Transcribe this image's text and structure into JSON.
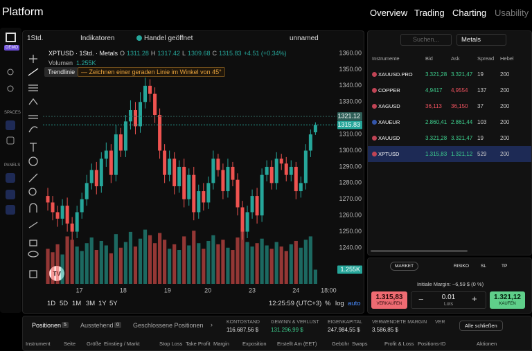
{
  "nav": {
    "brand": "Platform",
    "items": [
      "Overview",
      "Trading",
      "Charting",
      "Usability"
    ]
  },
  "sidebar": {
    "badge": "DEMO",
    "spaces": "SPACES",
    "panels": "PANELS"
  },
  "toolbar": {
    "interval": "1Std.",
    "indicators": "Indikatoren",
    "market_status": "Handel geöffnet",
    "layout": "unnamed"
  },
  "chart": {
    "type": "candlestick",
    "symbol": "XPTUSD · 1Std. · Metals",
    "o": "O",
    "h": "H",
    "l": "L",
    "c": "C",
    "change": "+4.51 (+0.34%)",
    "volume_name": "Volumen",
    "volume_last_label": "1.255K",
    "tool_name": "Trendlinie",
    "tool_hint": "— Zeichnen einer geraden Linie im Winkel von 45°",
    "colors": {
      "up": "#26a69a",
      "down": "#ef5350"
    },
    "grid": false,
    "candles": {
      "open": [
        1272,
        1268,
        1262,
        1258,
        1266,
        1255,
        1250,
        1262,
        1270,
        1280,
        1288,
        1278,
        1295,
        1300,
        1285,
        1310,
        1300,
        1318,
        1325,
        1315,
        1330,
        1340,
        1335,
        1322,
        1300,
        1285,
        1295,
        1278,
        1290,
        1270,
        1285,
        1262,
        1275,
        1268,
        1280,
        1295,
        1288,
        1275,
        1290,
        1282,
        1265,
        1250,
        1262,
        1272,
        1260,
        1285,
        1290,
        1280,
        1295,
        1292,
        1285,
        1290,
        1275,
        1280,
        1300,
        1311.28
      ],
      "high": [
        1277,
        1272,
        1266,
        1270,
        1271,
        1259,
        1266,
        1274,
        1285,
        1292,
        1293,
        1299,
        1305,
        1304,
        1316,
        1314,
        1322,
        1331,
        1330,
        1336,
        1345,
        1344,
        1339,
        1326,
        1304,
        1300,
        1299,
        1294,
        1295,
        1289,
        1290,
        1279,
        1280,
        1284,
        1300,
        1298,
        1292,
        1295,
        1293,
        1286,
        1269,
        1266,
        1276,
        1277,
        1289,
        1294,
        1294,
        1299,
        1298,
        1296,
        1294,
        1293,
        1284,
        1304,
        1313,
        1317.42
      ],
      "low": [
        1263,
        1257,
        1253,
        1254,
        1250,
        1245,
        1246,
        1258,
        1266,
        1276,
        1273,
        1274,
        1290,
        1280,
        1281,
        1296,
        1296,
        1313,
        1310,
        1311,
        1326,
        1330,
        1317,
        1295,
        1280,
        1281,
        1273,
        1274,
        1265,
        1266,
        1257,
        1258,
        1263,
        1264,
        1276,
        1284,
        1270,
        1271,
        1278,
        1260,
        1245,
        1246,
        1258,
        1255,
        1256,
        1281,
        1276,
        1276,
        1288,
        1281,
        1281,
        1270,
        1271,
        1276,
        1296,
        1309.68
      ],
      "close": [
        1268,
        1262,
        1258,
        1266,
        1255,
        1250,
        1262,
        1270,
        1280,
        1288,
        1278,
        1295,
        1300,
        1285,
        1310,
        1300,
        1318,
        1325,
        1315,
        1330,
        1340,
        1335,
        1322,
        1300,
        1285,
        1295,
        1278,
        1290,
        1270,
        1285,
        1262,
        1275,
        1268,
        1280,
        1295,
        1288,
        1275,
        1290,
        1282,
        1265,
        1250,
        1262,
        1272,
        1260,
        1285,
        1290,
        1280,
        1295,
        1292,
        1285,
        1290,
        1275,
        1280,
        1300,
        1310,
        1315.83
      ]
    },
    "volume": [
      3100,
      2800,
      3500,
      2600,
      4200,
      3900,
      3300,
      2900,
      3600,
      4100,
      3000,
      3800,
      3400,
      2700,
      4400,
      3200,
      3700,
      4600,
      3300,
      4000,
      4800,
      4300,
      3600,
      4500,
      3900,
      3100,
      3500,
      3000,
      4200,
      3400,
      4700,
      3600,
      3100,
      3800,
      4300,
      3500,
      3900,
      3200,
      3000,
      4100,
      4900,
      3700,
      3300,
      3600,
      4000,
      3400,
      3100,
      3700,
      3300,
      2900,
      3500,
      3800,
      3200,
      3900,
      4200,
      1255
    ],
    "ylim": [
      1217.8,
      1363
    ],
    "yticks": [
      {
        "value": 1360,
        "label": "1360.00"
      },
      {
        "value": 1350,
        "label": "1350.00"
      },
      {
        "value": 1340,
        "label": "1340.00"
      },
      {
        "value": 1330,
        "label": "1330.00"
      },
      {
        "value": 1320,
        "label": "1320.00"
      },
      {
        "value": 1310,
        "label": "1310.00"
      },
      {
        "value": 1300,
        "label": "1300.00"
      },
      {
        "value": 1290,
        "label": "1290.00"
      },
      {
        "value": 1280,
        "label": "1280.00"
      },
      {
        "value": 1270,
        "label": "1270.00"
      },
      {
        "value": 1260,
        "label": "1260.00"
      },
      {
        "value": 1250,
        "label": "1250.00"
      },
      {
        "value": 1240,
        "label": "1240.00"
      }
    ],
    "xlim": [
      -1,
      59.5
    ],
    "xticks": [
      {
        "value": 6.5,
        "label": "17"
      },
      {
        "value": 15.5,
        "label": "18"
      },
      {
        "value": 24.6,
        "label": "19"
      },
      {
        "value": 32.9,
        "label": "20"
      },
      {
        "value": 42,
        "label": "23"
      },
      {
        "value": 51,
        "label": "24"
      },
      {
        "value": 57.7,
        "label": "18:00"
      }
    ],
    "ask_price": 1321.12,
    "bid_price": 1315.83
  },
  "chart_footer": {
    "ranges": [
      "1D",
      "5D",
      "1M",
      "3M",
      "1Y",
      "5Y"
    ],
    "clock": "12:25:59 (UTC+3)",
    "percent": "%",
    "log": "log",
    "auto": "auto"
  },
  "watchlist": {
    "search": "Suchen...",
    "group": "Metals",
    "columns": [
      "Instrumente",
      "Bid",
      "Ask",
      "Spread",
      "Hebel"
    ],
    "selected": 5,
    "rows": [
      {
        "symbol": "XAUUSD.PRO",
        "bid": "3.321,28",
        "ask": "3.321,47",
        "spread": 19,
        "leverage": 200,
        "bid_color": "#3ecf8e",
        "ask_color": "#3ecf8e"
      },
      {
        "symbol": "COPPER",
        "bid": "4,9417",
        "ask": "4,9554",
        "spread": 137,
        "leverage": 200,
        "bid_color": "#3ecf8e",
        "ask_color": "#f0525f"
      },
      {
        "symbol": "XAGUSD",
        "bid": "36,113",
        "ask": "36,150",
        "spread": 37,
        "leverage": 200,
        "bid_color": "#f0525f",
        "ask_color": "#f0525f"
      },
      {
        "symbol": "XAUEUR",
        "bid": "2.860,41",
        "ask": "2.861,44",
        "spread": 103,
        "leverage": 200,
        "bid_color": "#3ecf8e",
        "ask_color": "#3ecf8e"
      },
      {
        "symbol": "XAUUSD",
        "bid": "3.321,28",
        "ask": "3.321,47",
        "spread": 19,
        "leverage": 200,
        "bid_color": "#3ecf8e",
        "ask_color": "#3ecf8e"
      },
      {
        "symbol": "XPTUSD",
        "bid": "1.315,83",
        "ask": "1.321,12",
        "spread": 529,
        "leverage": 200,
        "bid_color": "#3ecf8e",
        "ask_color": "#3ecf8e"
      }
    ]
  },
  "order": {
    "type": "MARKET",
    "risk": "RISIKO",
    "sl": "SL",
    "tp": "TP",
    "margin": "Initiale Margin: ~6,59 $ (0 %)",
    "sell_price": "1.315,83",
    "sell": "VERKAUFEN",
    "lots": "0.01",
    "lots_label": "Lots",
    "buy_price": "1.321,12",
    "buy": "KAUFEN"
  },
  "positions": {
    "tabs": [
      {
        "label": "Positionen",
        "count": 5
      },
      {
        "label": "Ausstehend",
        "count": 0
      },
      {
        "label": "Geschlossene Positionen"
      }
    ],
    "stats": [
      {
        "label": "KONTOSTAND",
        "value": "116.687,56 $",
        "color": "#e6e6e6"
      },
      {
        "label": "GEWINN & VERLUST",
        "value": "131.296,99 $",
        "color": "#3ecf8e"
      },
      {
        "label": "EIGENKAPITAL",
        "value": "247.984,55 $",
        "color": "#e6e6e6"
      },
      {
        "label": "VERWENDETE MARGIN",
        "value": "3.586,85 $",
        "color": "#e6e6e6"
      },
      {
        "label": "VER"
      }
    ],
    "close_all": "Alle schließen",
    "columns": [
      "Instrument",
      "Seite",
      "Größe",
      "Einstieg / Markt",
      "Stop Loss",
      "Take Profit",
      "Margin",
      "Exposition",
      "Erstellt Am (EET)",
      "Gebühr",
      "Swaps",
      "Profit & Loss",
      "Positions-ID",
      "Aktionen"
    ]
  }
}
